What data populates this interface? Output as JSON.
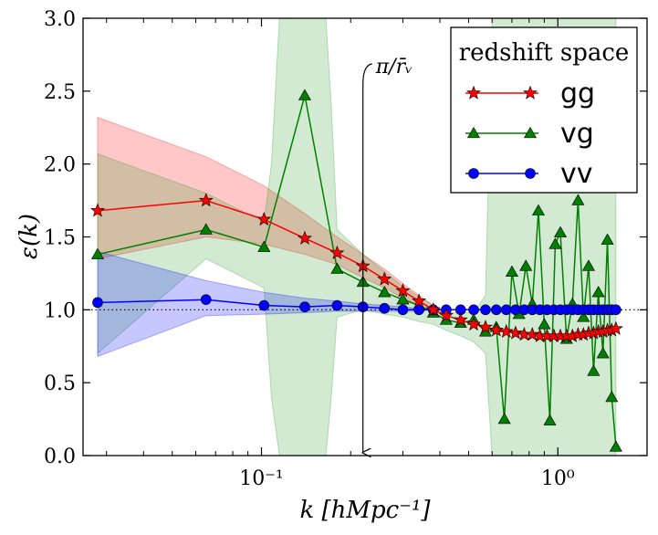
{
  "chart_data": {
    "type": "line",
    "xscale": "log",
    "xlim": [
      0.025,
      2.0
    ],
    "ylim": [
      0.0,
      3.0
    ],
    "xlabel": "k  [hMpc⁻¹]",
    "ylabel": "ε(k)",
    "xticks": [
      {
        "value": 0.1,
        "label": "10⁻¹"
      },
      {
        "value": 1.0,
        "label": "10⁰"
      }
    ],
    "yticks": [
      {
        "value": 0.0,
        "label": "0.0"
      },
      {
        "value": 0.5,
        "label": "0.5"
      },
      {
        "value": 1.0,
        "label": "1.0"
      },
      {
        "value": 1.5,
        "label": "1.5"
      },
      {
        "value": 2.0,
        "label": "2.0"
      },
      {
        "value": 2.5,
        "label": "2.5"
      },
      {
        "value": 3.0,
        "label": "3.0"
      }
    ],
    "reference_line": {
      "y": 1.0,
      "style": "dotted"
    },
    "annotation": {
      "text": "π/r̄ᵥ",
      "x": 0.22,
      "y_start": 2.6,
      "y_end": 0.02
    },
    "legend": {
      "title": "redshift space",
      "position": "top-right"
    },
    "series": [
      {
        "name": "gg",
        "color": "#ff0000",
        "fill_color": "#ff0000",
        "marker": "star",
        "x": [
          0.028,
          0.065,
          0.102,
          0.14,
          0.18,
          0.22,
          0.26,
          0.3,
          0.34,
          0.38,
          0.42,
          0.47,
          0.52,
          0.57,
          0.62,
          0.67,
          0.72,
          0.77,
          0.82,
          0.87,
          0.92,
          0.97,
          1.02,
          1.07,
          1.12,
          1.17,
          1.22,
          1.27,
          1.32,
          1.37,
          1.42,
          1.47,
          1.52,
          1.57
        ],
        "y": [
          1.68,
          1.75,
          1.62,
          1.49,
          1.39,
          1.3,
          1.21,
          1.13,
          1.06,
          1.0,
          0.96,
          0.93,
          0.9,
          0.88,
          0.86,
          0.85,
          0.84,
          0.83,
          0.83,
          0.82,
          0.82,
          0.82,
          0.82,
          0.82,
          0.82,
          0.83,
          0.83,
          0.84,
          0.84,
          0.85,
          0.85,
          0.86,
          0.86,
          0.87
        ],
        "band_x": [
          0.028,
          0.065,
          0.102,
          0.14,
          0.18,
          0.22,
          0.26,
          0.3,
          0.34,
          0.38,
          0.42
        ],
        "band_lower": [
          1.35,
          1.5,
          1.45,
          1.38,
          1.31,
          1.22,
          1.15,
          1.08,
          1.03,
          0.99,
          0.96
        ],
        "band_upper": [
          2.32,
          2.05,
          1.85,
          1.66,
          1.5,
          1.38,
          1.28,
          1.18,
          1.1,
          1.03,
          0.98
        ]
      },
      {
        "name": "vg",
        "color": "#007f00",
        "fill_color": "#2ca02c",
        "marker": "triangle",
        "x": [
          0.028,
          0.065,
          0.102,
          0.14,
          0.18,
          0.22,
          0.26,
          0.3,
          0.34,
          0.38,
          0.42,
          0.47,
          0.52,
          0.57,
          0.62,
          0.66,
          0.7,
          0.74,
          0.78,
          0.82,
          0.86,
          0.9,
          0.94,
          0.98,
          1.02,
          1.07,
          1.12,
          1.17,
          1.22,
          1.27,
          1.32,
          1.37,
          1.42,
          1.47,
          1.52,
          1.57
        ],
        "y": [
          1.38,
          1.55,
          1.43,
          2.47,
          1.28,
          1.19,
          1.12,
          1.07,
          1.03,
          0.98,
          0.93,
          0.91,
          0.93,
          0.85,
          0.88,
          0.25,
          1.26,
          0.97,
          1.3,
          1.04,
          1.68,
          0.9,
          0.24,
          1.45,
          1.53,
          0.8,
          1.04,
          1.75,
          0.95,
          1.3,
          0.58,
          1.12,
          0.7,
          1.48,
          0.4,
          0.06
        ],
        "band_x": [
          0.028,
          0.065,
          0.102,
          0.108,
          0.115,
          0.14,
          0.165,
          0.172,
          0.18,
          0.22,
          0.26,
          0.3,
          0.34,
          0.38,
          0.42,
          0.47,
          0.52,
          0.57,
          0.6,
          0.65,
          0.7,
          0.8,
          0.9,
          1.0,
          1.1,
          1.3,
          1.57
        ],
        "band_lower": [
          0.7,
          1.35,
          1.15,
          0.4,
          0.0,
          0.0,
          0.0,
          0.4,
          0.95,
          1.0,
          0.97,
          0.95,
          0.92,
          0.9,
          0.86,
          0.82,
          0.78,
          0.7,
          0.0,
          0.0,
          0.0,
          0.0,
          0.0,
          0.0,
          0.0,
          0.0,
          0.0
        ],
        "band_upper": [
          2.07,
          1.8,
          1.6,
          2.0,
          3.0,
          3.0,
          3.0,
          2.4,
          1.55,
          1.38,
          1.26,
          1.16,
          1.09,
          1.03,
          0.98,
          0.98,
          0.98,
          1.1,
          3.0,
          3.0,
          3.0,
          3.0,
          3.0,
          3.0,
          3.0,
          3.0,
          3.0
        ]
      },
      {
        "name": "vv",
        "color": "#0000ff",
        "fill_color": "#0000ff",
        "marker": "circle",
        "x": [
          0.028,
          0.065,
          0.102,
          0.14,
          0.18,
          0.22,
          0.26,
          0.3,
          0.34,
          0.38,
          0.42,
          0.47,
          0.52,
          0.57,
          0.62,
          0.67,
          0.72,
          0.77,
          0.82,
          0.87,
          0.92,
          0.97,
          1.02,
          1.07,
          1.12,
          1.17,
          1.22,
          1.27,
          1.32,
          1.37,
          1.42,
          1.47,
          1.52,
          1.57
        ],
        "y": [
          1.05,
          1.07,
          1.03,
          1.02,
          1.03,
          1.02,
          1.01,
          1.0,
          1.0,
          1.0,
          1.0,
          1.0,
          1.0,
          1.0,
          1.0,
          1.0,
          1.0,
          1.0,
          1.0,
          1.0,
          1.0,
          1.0,
          1.0,
          1.0,
          1.0,
          1.0,
          1.0,
          1.0,
          1.0,
          1.0,
          1.0,
          1.0,
          1.0,
          1.0
        ],
        "band_x": [
          0.028,
          0.065,
          0.102,
          0.14,
          0.18,
          0.22,
          0.26,
          0.3,
          0.34,
          0.38,
          0.42
        ],
        "band_lower": [
          0.68,
          0.96,
          0.97,
          0.98,
          0.99,
          0.99,
          0.99,
          0.99,
          0.99,
          1.0,
          1.0
        ],
        "band_upper": [
          1.4,
          1.2,
          1.12,
          1.08,
          1.06,
          1.04,
          1.03,
          1.02,
          1.01,
          1.01,
          1.0
        ]
      }
    ]
  }
}
